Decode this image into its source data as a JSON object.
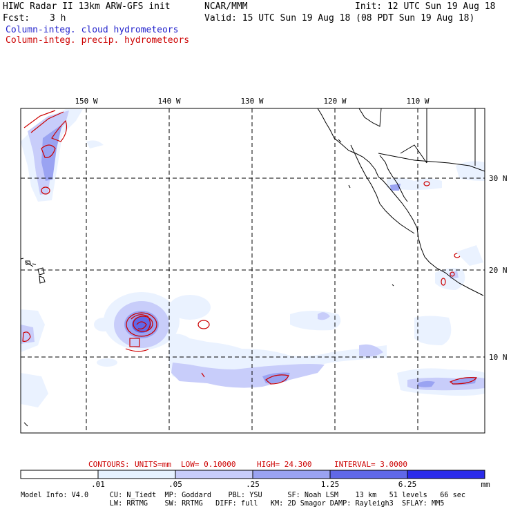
{
  "header": {
    "title": "HIWC Radar II 13km ARW-GFS init",
    "org": "NCAR/MMM",
    "init": "Init: 12 UTC Sun 19 Aug 18",
    "fcst_label": "Fcst:",
    "fcst_value": "3 h",
    "valid": "Valid: 15 UTC Sun 19 Aug 18 (08 PDT Sun 19 Aug 18)",
    "field1": "Column-integ. cloud hydrometeors",
    "field2": "Column-integ. precip. hydrometeors",
    "field1_color": "#2222cc",
    "field2_color": "#cc0000"
  },
  "map": {
    "lon_labels": [
      "150 W",
      "140 W",
      "130 W",
      "120 W",
      "110 W"
    ],
    "lat_labels": [
      "30 N",
      "20 N",
      "10 N"
    ],
    "grid_style": "dashed"
  },
  "contours": {
    "label": "CONTOURS:",
    "units": "UNITS=mm",
    "low": "LOW= 0.10000",
    "high": "HIGH= 24.300",
    "interval": "INTERVAL= 3.0000"
  },
  "colorbar": {
    "labels": [
      ".01",
      ".05",
      ".25",
      "1.25",
      "6.25"
    ],
    "unit": "mm",
    "colors": [
      "#ffffff",
      "#e6f2ff",
      "#c8cdfa",
      "#9aa3f2",
      "#6068e8",
      "#2b2bea",
      "#0000dd"
    ]
  },
  "model_info": {
    "line1": "Model Info: V4.0     CU: N_Tiedt  MP: Goddard    PBL: YSU      SF: Noah LSM    13 km   51 levels   66 sec",
    "line2": "                     LW: RRTMG    SW: RRTMG   DIFF: full   KM: 2D Smagor DAMP: Rayleigh3  SFLAY: MM5"
  }
}
